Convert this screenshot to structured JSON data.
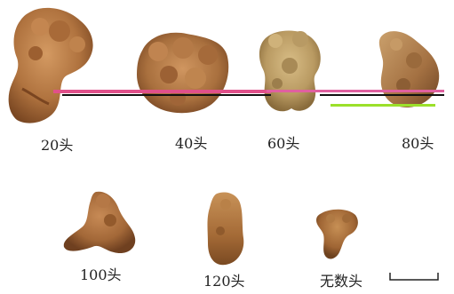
{
  "labels": {
    "s20": "20头",
    "s40": "40头",
    "s60": "60头",
    "s80": "80头",
    "s100": "100头",
    "s120": "120头",
    "unnumbered": "无数头"
  },
  "colors": {
    "root_body": "#b67a45",
    "root_shadow": "#7f4c24",
    "root_highlight": "#d8a470",
    "pale_root": "#c8ac74",
    "stripe_magenta": "#e0508a",
    "stripe_black": "#101010",
    "stripe_green": "#9be02a"
  }
}
